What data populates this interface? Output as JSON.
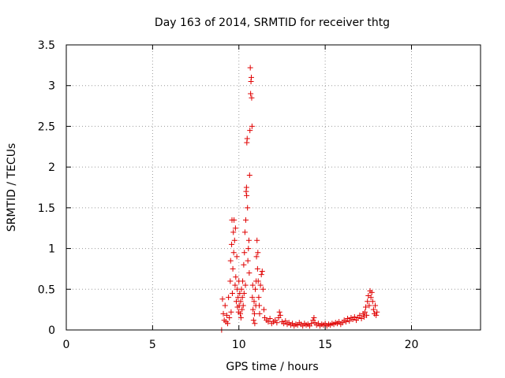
{
  "chart_data": {
    "type": "scatter",
    "title": "Day 163 of 2014, SRMTID for receiver thtg",
    "xlabel": "GPS time / hours",
    "ylabel": "SRMTID / TECUs",
    "xlim": [
      0,
      24
    ],
    "ylim": [
      0,
      3.5
    ],
    "xticks": [
      0,
      5,
      10,
      15,
      20
    ],
    "yticks": [
      0,
      0.5,
      1,
      1.5,
      2,
      2.5,
      3,
      3.5
    ],
    "grid": true,
    "marker": "+",
    "color": "#e00000",
    "series": [
      {
        "name": "SRMTID",
        "points": [
          [
            9.0,
            0.0
          ],
          [
            9.05,
            0.38
          ],
          [
            9.1,
            0.2
          ],
          [
            9.15,
            0.12
          ],
          [
            9.2,
            0.3
          ],
          [
            9.25,
            0.1
          ],
          [
            9.3,
            0.18
          ],
          [
            9.35,
            0.08
          ],
          [
            9.4,
            0.4
          ],
          [
            9.45,
            0.15
          ],
          [
            9.5,
            0.6
          ],
          [
            9.52,
            0.85
          ],
          [
            9.55,
            0.22
          ],
          [
            9.58,
            1.05
          ],
          [
            9.6,
            1.35
          ],
          [
            9.62,
            0.45
          ],
          [
            9.65,
            0.75
          ],
          [
            9.68,
            1.2
          ],
          [
            9.7,
            0.95
          ],
          [
            9.72,
            1.35
          ],
          [
            9.75,
            1.1
          ],
          [
            9.78,
            0.55
          ],
          [
            9.8,
            1.25
          ],
          [
            9.82,
            0.65
          ],
          [
            9.85,
            0.35
          ],
          [
            9.88,
            0.9
          ],
          [
            9.9,
            0.5
          ],
          [
            9.92,
            0.28
          ],
          [
            9.95,
            0.4
          ],
          [
            9.98,
            0.22
          ],
          [
            10.0,
            0.6
          ],
          [
            10.02,
            0.3
          ],
          [
            10.05,
            0.45
          ],
          [
            10.08,
            0.2
          ],
          [
            10.1,
            0.35
          ],
          [
            10.12,
            0.15
          ],
          [
            10.15,
            0.5
          ],
          [
            10.18,
            0.25
          ],
          [
            10.2,
            0.4
          ],
          [
            10.22,
            0.6
          ],
          [
            10.25,
            0.3
          ],
          [
            10.28,
            0.8
          ],
          [
            10.3,
            0.45
          ],
          [
            10.32,
            0.95
          ],
          [
            10.35,
            1.2
          ],
          [
            10.38,
            0.55
          ],
          [
            10.4,
            1.35
          ],
          [
            10.42,
            1.7
          ],
          [
            10.44,
            1.75
          ],
          [
            10.45,
            1.65
          ],
          [
            10.46,
            2.3
          ],
          [
            10.48,
            2.35
          ],
          [
            10.5,
            1.5
          ],
          [
            10.52,
            0.85
          ],
          [
            10.55,
            1.0
          ],
          [
            10.58,
            1.1
          ],
          [
            10.6,
            0.7
          ],
          [
            10.62,
            1.9
          ],
          [
            10.64,
            2.45
          ],
          [
            10.66,
            3.22
          ],
          [
            10.68,
            2.9
          ],
          [
            10.7,
            3.05
          ],
          [
            10.72,
            3.1
          ],
          [
            10.74,
            2.85
          ],
          [
            10.76,
            2.5
          ],
          [
            10.78,
            0.4
          ],
          [
            10.8,
            0.55
          ],
          [
            10.82,
            0.25
          ],
          [
            10.85,
            0.12
          ],
          [
            10.88,
            0.35
          ],
          [
            10.9,
            0.2
          ],
          [
            10.92,
            0.08
          ],
          [
            10.95,
            0.5
          ],
          [
            10.98,
            0.3
          ],
          [
            11.0,
            0.6
          ],
          [
            11.02,
            0.9
          ],
          [
            11.05,
            1.1
          ],
          [
            11.08,
            0.75
          ],
          [
            11.1,
            0.95
          ],
          [
            11.12,
            0.6
          ],
          [
            11.15,
            0.4
          ],
          [
            11.18,
            0.3
          ],
          [
            11.2,
            0.2
          ],
          [
            11.25,
            0.55
          ],
          [
            11.3,
            0.68
          ],
          [
            11.35,
            0.72
          ],
          [
            11.4,
            0.5
          ],
          [
            11.45,
            0.25
          ],
          [
            11.5,
            0.15
          ],
          [
            11.6,
            0.12
          ],
          [
            11.7,
            0.1
          ],
          [
            11.8,
            0.14
          ],
          [
            11.9,
            0.08
          ],
          [
            12.0,
            0.1
          ],
          [
            12.1,
            0.12
          ],
          [
            12.2,
            0.09
          ],
          [
            12.3,
            0.15
          ],
          [
            12.35,
            0.22
          ],
          [
            12.4,
            0.18
          ],
          [
            12.5,
            0.1
          ],
          [
            12.6,
            0.08
          ],
          [
            12.7,
            0.11
          ],
          [
            12.8,
            0.07
          ],
          [
            12.9,
            0.09
          ],
          [
            13.0,
            0.06
          ],
          [
            13.1,
            0.08
          ],
          [
            13.2,
            0.05
          ],
          [
            13.3,
            0.07
          ],
          [
            13.4,
            0.06
          ],
          [
            13.5,
            0.09
          ],
          [
            13.6,
            0.07
          ],
          [
            13.7,
            0.05
          ],
          [
            13.8,
            0.08
          ],
          [
            13.9,
            0.06
          ],
          [
            14.0,
            0.07
          ],
          [
            14.1,
            0.05
          ],
          [
            14.2,
            0.08
          ],
          [
            14.3,
            0.12
          ],
          [
            14.35,
            0.15
          ],
          [
            14.4,
            0.09
          ],
          [
            14.5,
            0.06
          ],
          [
            14.6,
            0.08
          ],
          [
            14.7,
            0.05
          ],
          [
            14.8,
            0.07
          ],
          [
            14.9,
            0.06
          ],
          [
            15.0,
            0.08
          ],
          [
            15.1,
            0.05
          ],
          [
            15.2,
            0.07
          ],
          [
            15.3,
            0.06
          ],
          [
            15.4,
            0.08
          ],
          [
            15.5,
            0.07
          ],
          [
            15.6,
            0.09
          ],
          [
            15.7,
            0.08
          ],
          [
            15.8,
            0.1
          ],
          [
            15.9,
            0.07
          ],
          [
            16.0,
            0.09
          ],
          [
            16.1,
            0.12
          ],
          [
            16.2,
            0.1
          ],
          [
            16.3,
            0.14
          ],
          [
            16.4,
            0.11
          ],
          [
            16.5,
            0.15
          ],
          [
            16.6,
            0.13
          ],
          [
            16.7,
            0.16
          ],
          [
            16.8,
            0.12
          ],
          [
            16.9,
            0.15
          ],
          [
            17.0,
            0.18
          ],
          [
            17.1,
            0.14
          ],
          [
            17.2,
            0.2
          ],
          [
            17.25,
            0.16
          ],
          [
            17.3,
            0.22
          ],
          [
            17.35,
            0.28
          ],
          [
            17.4,
            0.18
          ],
          [
            17.45,
            0.35
          ],
          [
            17.5,
            0.42
          ],
          [
            17.55,
            0.3
          ],
          [
            17.6,
            0.48
          ],
          [
            17.65,
            0.4
          ],
          [
            17.7,
            0.46
          ],
          [
            17.75,
            0.35
          ],
          [
            17.8,
            0.25
          ],
          [
            17.85,
            0.2
          ],
          [
            17.9,
            0.3
          ],
          [
            17.95,
            0.18
          ],
          [
            18.0,
            0.22
          ]
        ]
      }
    ]
  }
}
